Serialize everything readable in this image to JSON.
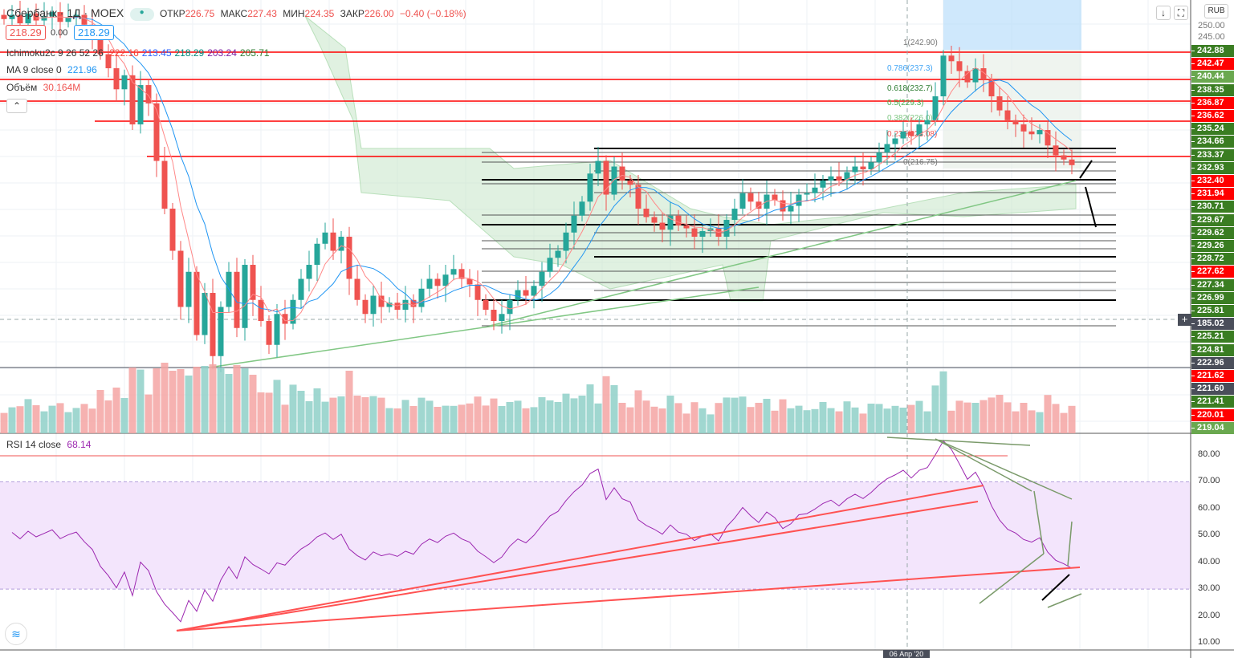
{
  "header": {
    "symbol": "Сбербанк · 1Д · MOEX",
    "open_label": "ОТКР",
    "open": "226.75",
    "high_label": "МАКС",
    "high": "227.43",
    "low_label": "МИН",
    "low": "224.35",
    "close_label": "ЗАКР",
    "close": "226.00",
    "change": "−0.40 (−0.18%)",
    "sell": "218.29",
    "spread": "0.00",
    "buy": "218.29"
  },
  "indicators": {
    "ichimoku_name": "Ichimoku2c 9 26 52 26",
    "ichimoku_vals": [
      "222.16",
      "213.45",
      "218.29",
      "203.24",
      "205.71"
    ],
    "ma_name": "MA 9 close 0",
    "ma_val": "221.96",
    "vol_name": "Объём",
    "vol_val": "30.164M",
    "rsi_name": "RSI 14 close",
    "rsi_val": "68.14"
  },
  "axis": {
    "currency": "RUB",
    "top_ticks": [
      "250.00",
      "245.00"
    ],
    "levels": [
      {
        "v": "242.88",
        "c": "#3a7d22"
      },
      {
        "v": "242.47",
        "c": "#ff0000"
      },
      {
        "v": "240.44",
        "c": "#6aa84f"
      },
      {
        "v": "238.35",
        "c": "#3a7d22"
      },
      {
        "v": "236.87",
        "c": "#ff0000"
      },
      {
        "v": "236.62",
        "c": "#ff0000"
      },
      {
        "v": "235.24",
        "c": "#3a7d22"
      },
      {
        "v": "234.66",
        "c": "#3a7d22"
      },
      {
        "v": "233.37",
        "c": "#3a7d22"
      },
      {
        "v": "232.93",
        "c": "#3a7d22"
      },
      {
        "v": "232.40",
        "c": "#ff0000"
      },
      {
        "v": "231.94",
        "c": "#ff0000"
      },
      {
        "v": "230.71",
        "c": "#3a7d22"
      },
      {
        "v": "229.67",
        "c": "#3a7d22"
      },
      {
        "v": "229.62",
        "c": "#3a7d22"
      },
      {
        "v": "229.26",
        "c": "#3a7d22"
      },
      {
        "v": "228.72",
        "c": "#3a7d22"
      },
      {
        "v": "227.62",
        "c": "#ff0000"
      },
      {
        "v": "227.34",
        "c": "#3a7d22"
      },
      {
        "v": "226.99",
        "c": "#3a7d22"
      },
      {
        "v": "225.81",
        "c": "#3a7d22"
      },
      {
        "v": "185.02",
        "c": "#4a4e5a"
      },
      {
        "v": "225.21",
        "c": "#3a7d22"
      },
      {
        "v": "224.81",
        "c": "#3a7d22"
      },
      {
        "v": "222.96",
        "c": "#4a4e5a"
      },
      {
        "v": "221.62",
        "c": "#ff0000"
      },
      {
        "v": "221.60",
        "c": "#4a4e5a"
      },
      {
        "v": "221.41",
        "c": "#3a7d22"
      },
      {
        "v": "220.01",
        "c": "#ff0000"
      },
      {
        "v": "219.04",
        "c": "#6aa84f"
      }
    ],
    "rsi_ticks": [
      "80.00",
      "70.00",
      "60.00",
      "50.00",
      "40.00",
      "30.00",
      "20.00",
      "10.00"
    ],
    "date_label": "06 Апр '20"
  },
  "fib": [
    "1(242.90)",
    "0.786(237.3)",
    "0.618(232.7)",
    "0.5(229.3)",
    "0.382(226.0)",
    "0.236(223.08)",
    "0(216.75)"
  ],
  "colors": {
    "up": "#26a69a",
    "down": "#ef5350",
    "rsi": "#9c27b0"
  },
  "chart_data": {
    "type": "candlestick",
    "title": "Сбербанк · 1Д · MOEX",
    "ylim": [
      217,
      247.86
    ],
    "rsi_ylim": [
      10,
      80
    ],
    "rsi_bands": [
      30,
      70
    ],
    "closes": [
      246.5,
      246.8,
      246.2,
      246.9,
      246.4,
      246.7,
      247.0,
      246.3,
      246.6,
      246.8,
      246.1,
      245.5,
      244.0,
      243.0,
      241.5,
      242.5,
      239.0,
      241.8,
      240.5,
      236.4,
      233.0,
      230.0,
      226.0,
      228.5,
      224.0,
      227.0,
      222.5,
      226.0,
      228.5,
      224.5,
      229.0,
      226.5,
      225.0,
      223.3,
      225.5,
      224.8,
      226.5,
      228.0,
      229.0,
      230.5,
      231.3,
      230.0,
      231.0,
      228.0,
      226.5,
      225.5,
      226.8,
      226.0,
      226.3,
      225.8,
      226.5,
      226.0,
      227.3,
      228.0,
      227.5,
      228.3,
      228.7,
      228.0,
      227.6,
      226.5,
      225.8,
      225.0,
      225.5,
      226.5,
      227.2,
      226.8,
      227.5,
      228.5,
      229.5,
      230.0,
      231.3,
      232.5,
      233.5,
      235.5,
      236.4,
      234.0,
      236.0,
      235.0,
      234.7,
      233.0,
      232.4,
      232.0,
      231.5,
      232.5,
      231.8,
      231.6,
      231.0,
      231.4,
      231.6,
      231.0,
      232.2,
      233.0,
      234.1,
      233.5,
      233.0,
      234.0,
      233.6,
      232.8,
      233.2,
      234.0,
      234.1,
      234.5,
      235.0,
      235.3,
      235.0,
      235.6,
      236.0,
      235.8,
      236.3,
      237.0,
      237.6,
      238.0,
      238.5,
      238.2,
      239.0,
      239.3,
      241.0,
      243.9,
      243.5,
      242.8,
      242.0,
      243.0,
      242.2,
      241.0,
      240.0,
      239.3,
      239.0,
      238.5,
      238.3,
      238.6,
      237.5,
      236.8,
      236.5,
      236.1
    ]
  }
}
